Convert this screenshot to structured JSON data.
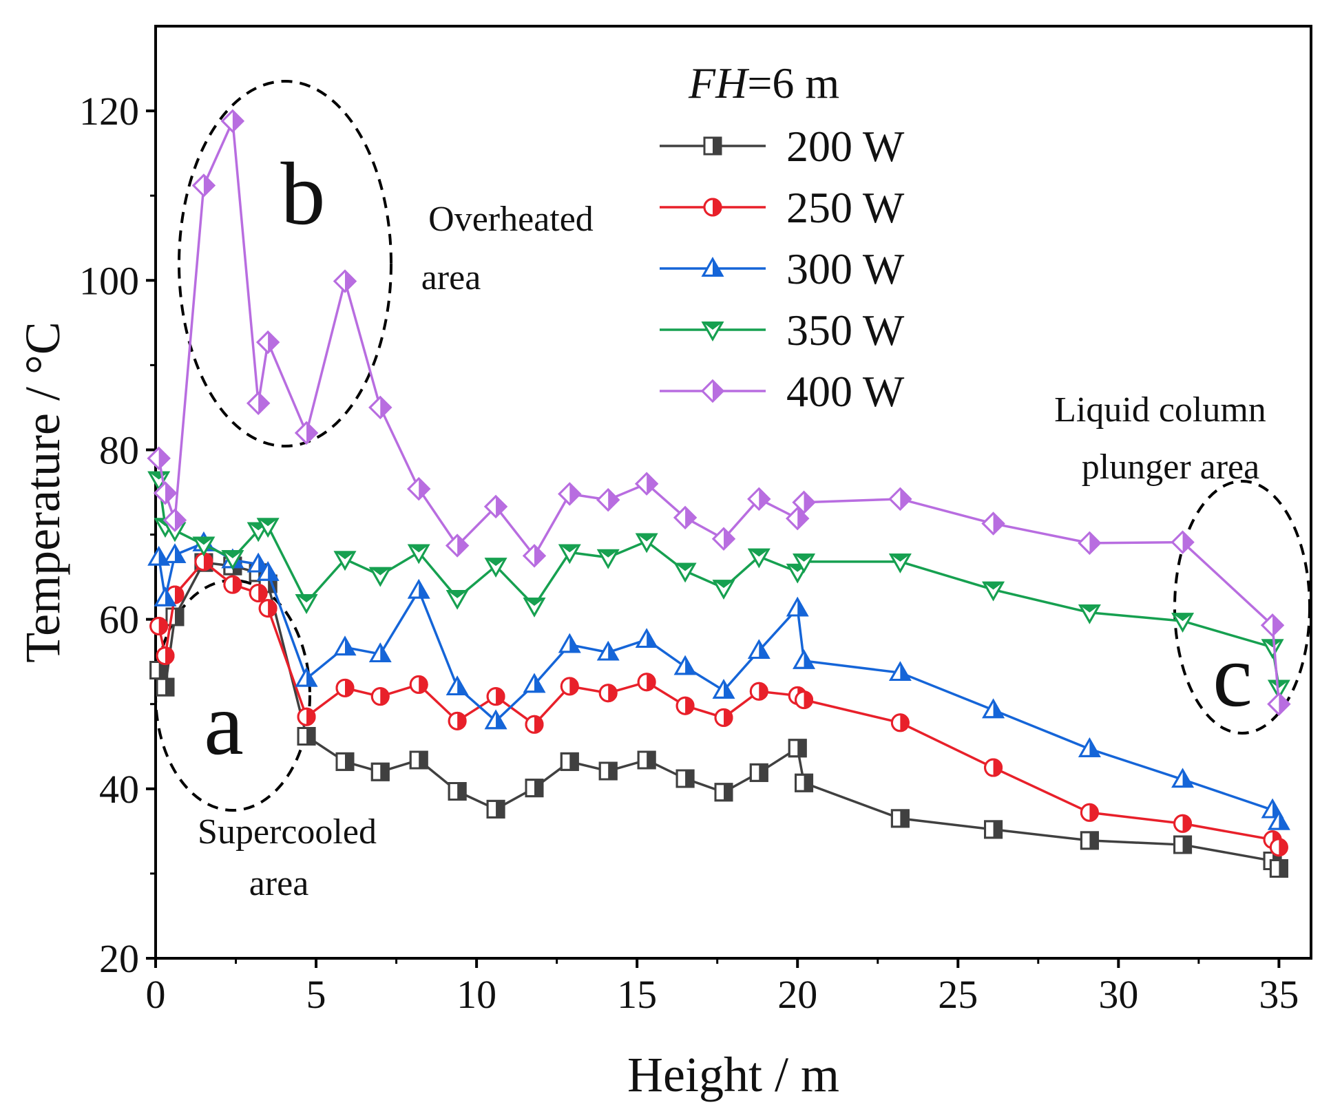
{
  "chart_data": {
    "type": "line",
    "title": "",
    "xlabel": "Height / m",
    "ylabel": "Temperature / °C",
    "xlim": [
      0,
      36
    ],
    "ylim": [
      20,
      130
    ],
    "xticks": [
      0,
      5,
      10,
      15,
      20,
      25,
      30,
      35
    ],
    "yticks": [
      20,
      40,
      60,
      80,
      100,
      120
    ],
    "grid": false,
    "legend": {
      "title_italic": "FH",
      "title_rest": "=6 m",
      "placement": "top-center"
    },
    "series": [
      {
        "name": "200 W",
        "color": "#404040",
        "marker": "square",
        "x": [
          0.1,
          0.3,
          0.6,
          1.5,
          2.4,
          3.2,
          3.5,
          4.7,
          5.9,
          7.0,
          8.2,
          9.4,
          10.6,
          11.8,
          12.9,
          14.1,
          15.3,
          16.5,
          17.7,
          18.8,
          20.0,
          20.2,
          23.2,
          26.1,
          29.1,
          32.0,
          34.8,
          35.0
        ],
        "y": [
          54,
          52,
          60.3,
          66.7,
          66.3,
          65.5,
          64.2,
          46.2,
          43.2,
          42.0,
          43.4,
          39.7,
          37.6,
          40.1,
          43.2,
          42.1,
          43.4,
          41.2,
          39.6,
          41.9,
          44.8,
          40.7,
          36.5,
          35.2,
          33.9,
          33.4,
          31.5,
          30.6
        ]
      },
      {
        "name": "250 W",
        "color": "#e8202a",
        "marker": "circle",
        "x": [
          0.1,
          0.3,
          0.6,
          1.5,
          2.4,
          3.2,
          3.5,
          4.7,
          5.9,
          7.0,
          8.2,
          9.4,
          10.6,
          11.8,
          12.9,
          14.1,
          15.3,
          16.5,
          17.7,
          18.8,
          20.0,
          20.2,
          23.2,
          26.1,
          29.1,
          32.0,
          34.8,
          35.0
        ],
        "y": [
          59.2,
          55.7,
          62.9,
          66.8,
          64.1,
          63.1,
          61.3,
          48.5,
          51.9,
          50.9,
          52.3,
          48.0,
          50.9,
          47.6,
          52.1,
          51.3,
          52.6,
          49.8,
          48.4,
          51.5,
          51.0,
          50.5,
          47.8,
          42.5,
          37.2,
          35.9,
          34.0,
          33.1
        ]
      },
      {
        "name": "300 W",
        "color": "#1565d8",
        "marker": "triangle-up",
        "x": [
          0.1,
          0.3,
          0.6,
          1.5,
          2.4,
          3.2,
          3.5,
          4.7,
          5.9,
          7.0,
          8.2,
          9.4,
          10.6,
          11.8,
          12.9,
          14.1,
          15.3,
          16.5,
          17.7,
          18.8,
          20.0,
          20.2,
          23.2,
          26.1,
          29.1,
          32.0,
          34.8,
          35.0
        ],
        "y": [
          67.3,
          62.5,
          67.6,
          69.0,
          67.0,
          66.5,
          65.5,
          53.0,
          56.7,
          55.9,
          63.4,
          52.0,
          48.0,
          52.3,
          57.0,
          56.1,
          57.6,
          54.4,
          51.6,
          56.3,
          61.3,
          55.1,
          53.7,
          49.3,
          44.7,
          41.1,
          37.5,
          36.1
        ]
      },
      {
        "name": "350 W",
        "color": "#16a050",
        "marker": "triangle-down",
        "x": [
          0.1,
          0.3,
          0.6,
          1.5,
          2.4,
          3.2,
          3.5,
          4.7,
          5.9,
          7.0,
          8.2,
          9.4,
          10.6,
          11.8,
          12.9,
          14.1,
          15.3,
          16.5,
          17.7,
          18.8,
          20.0,
          20.2,
          23.2,
          26.1,
          29.1,
          32.0,
          34.8,
          35.0
        ],
        "y": [
          76.5,
          71.0,
          70.5,
          68.8,
          67.2,
          70.5,
          71.0,
          62.0,
          67.1,
          65.2,
          67.9,
          62.5,
          66.3,
          61.6,
          67.9,
          67.3,
          69.2,
          65.7,
          63.7,
          67.4,
          65.6,
          66.8,
          66.8,
          63.5,
          60.8,
          59.8,
          56.7,
          51.9
        ]
      },
      {
        "name": "400 W",
        "color": "#b86de0",
        "marker": "diamond",
        "x": [
          0.1,
          0.3,
          0.6,
          1.5,
          2.4,
          3.2,
          3.5,
          4.7,
          5.9,
          7.0,
          8.2,
          9.4,
          10.6,
          11.8,
          12.9,
          14.1,
          15.3,
          16.5,
          17.7,
          18.8,
          20.0,
          20.2,
          23.2,
          26.1,
          29.1,
          32.0,
          34.8,
          35.0
        ],
        "y": [
          79.0,
          74.9,
          71.7,
          111.2,
          118.8,
          85.5,
          92.7,
          82.0,
          99.9,
          85.0,
          75.4,
          68.7,
          73.3,
          67.5,
          74.8,
          74.1,
          76.0,
          72.0,
          69.5,
          74.2,
          71.9,
          73.8,
          74.2,
          71.3,
          69.0,
          69.1,
          59.3,
          50.0
        ]
      }
    ],
    "annotations": {
      "region_a": "a",
      "region_b": "b",
      "region_c": "c",
      "supercooled_line1": "Supercooled",
      "supercooled_line2": "area",
      "overheated_line1": "Overheated",
      "overheated_line2": "area",
      "liquid_line1": "Liquid column",
      "liquid_line2": "plunger area"
    }
  }
}
